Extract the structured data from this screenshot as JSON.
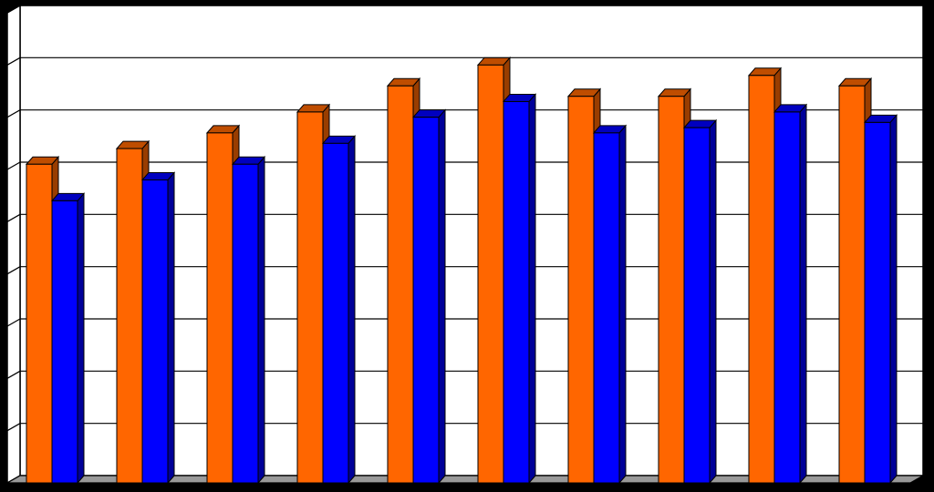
{
  "chart_data": {
    "type": "bar",
    "title": "",
    "xlabel": "",
    "ylabel": "",
    "ylim": [
      0,
      9
    ],
    "grid": true,
    "legend": "none",
    "categories": [
      "",
      "",
      "",
      "",
      "",
      "",
      "",
      "",
      "",
      ""
    ],
    "series": [
      {
        "color": "#FF6600",
        "values": [
          6.1,
          6.4,
          6.7,
          7.1,
          7.6,
          8.0,
          7.4,
          7.4,
          7.8,
          7.6
        ]
      },
      {
        "color": "#0000FF",
        "values": [
          5.4,
          5.8,
          6.1,
          6.5,
          7.0,
          7.3,
          6.7,
          6.8,
          7.1,
          6.9
        ]
      }
    ]
  },
  "colors": {
    "background": "#000000",
    "plot_area": "#FFFFFF",
    "floor": "#999999",
    "gridline": "#000000"
  }
}
